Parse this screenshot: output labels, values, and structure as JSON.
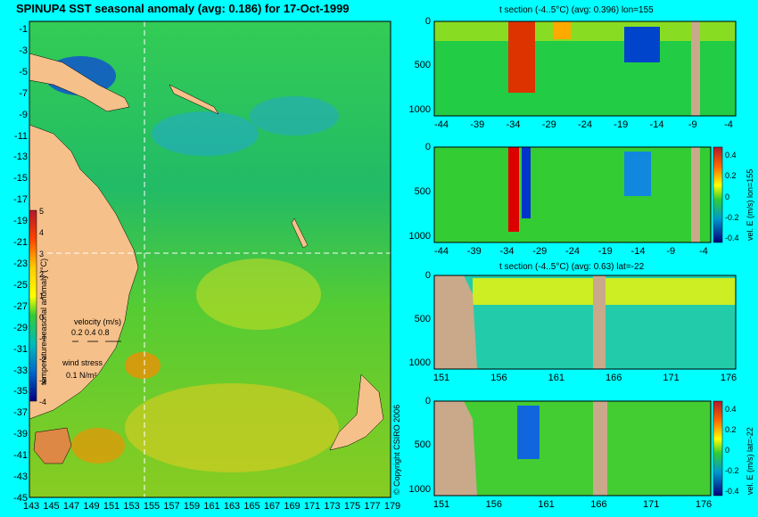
{
  "map": {
    "title": "SPINUP4 SST seasonal anomaly (avg: 0.186) for 17-Oct-1999",
    "lat_ticks": [
      "-1",
      "-3",
      "-5",
      "-7",
      "-9",
      "-11",
      "-13",
      "-15",
      "-17",
      "-19",
      "-21",
      "-23",
      "-25",
      "-27",
      "-29",
      "-31",
      "-33",
      "-35",
      "-37",
      "-39",
      "-41",
      "-43",
      "-45"
    ],
    "lon_ticks": [
      "143",
      "145",
      "147",
      "149",
      "151",
      "153",
      "155",
      "157",
      "159",
      "161",
      "163",
      "165",
      "167",
      "169",
      "171",
      "173",
      "175",
      "177",
      "179"
    ],
    "colorbar": {
      "label": "temperature seasonal anomaly (°C)",
      "ticks": [
        "5",
        "4",
        "3",
        "2",
        "1",
        "0",
        "-1",
        "-2",
        "-3",
        "-4"
      ]
    },
    "velocity_legend": {
      "label": "velocity (m/s)",
      "values": "0.2 0.4 0.8"
    },
    "wind_legend": {
      "label": "wind stress",
      "value": "0.1 N/m²"
    },
    "copyright": "© Copyright CSIRO 2006"
  },
  "panels": [
    {
      "title": "t section (-4..5°C) (avg: 0.396) lon=155",
      "x_ticks": [
        "-44",
        "-39",
        "-34",
        "-29",
        "-24",
        "-19",
        "-14",
        "-9",
        "-4"
      ],
      "y_ticks": [
        "0",
        "500",
        "1000"
      ],
      "side_label": ""
    },
    {
      "title": "",
      "x_ticks": [
        "-44",
        "-39",
        "-34",
        "-29",
        "-24",
        "-19",
        "-14",
        "-9",
        "-4"
      ],
      "y_ticks": [
        "0",
        "500",
        "1000"
      ],
      "side_label": "vel. E (m/s) lon=155",
      "cbar_ticks": [
        "0.4",
        "0.2",
        "0",
        "-0.2",
        "-0.4"
      ]
    },
    {
      "title": "t section (-4..5°C) (avg: 0.63) lat=-22",
      "x_ticks": [
        "151",
        "156",
        "161",
        "166",
        "171",
        "176"
      ],
      "y_ticks": [
        "0",
        "500",
        "1000"
      ],
      "side_label": ""
    },
    {
      "title": "",
      "x_ticks": [
        "151",
        "156",
        "161",
        "166",
        "171",
        "176"
      ],
      "y_ticks": [
        "0",
        "500",
        "1000"
      ],
      "side_label": "vel. E (m/s) lat=-22",
      "cbar_ticks": [
        "0.4",
        "0.2",
        "0",
        "-0.2",
        "-0.4"
      ]
    }
  ]
}
